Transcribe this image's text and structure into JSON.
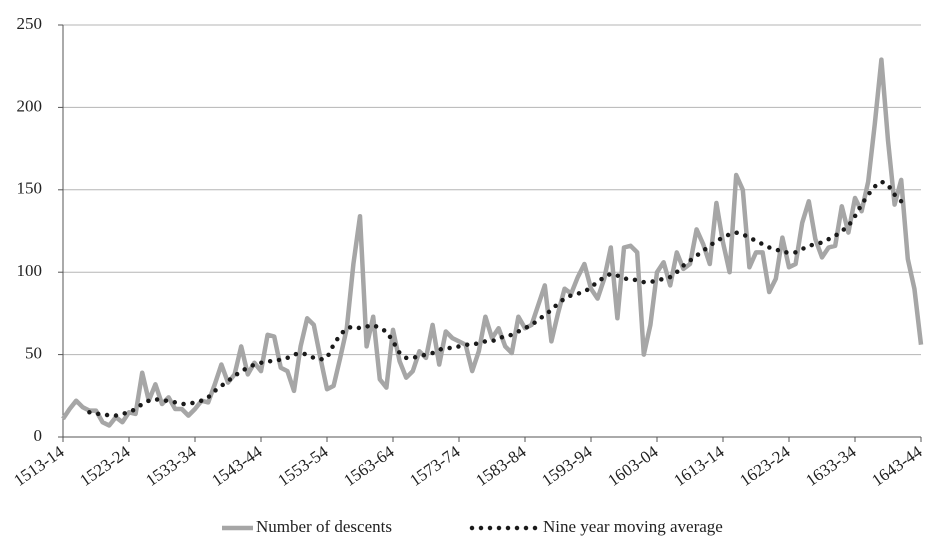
{
  "chart_data": {
    "type": "line",
    "categories": [
      "1513-14",
      null,
      null,
      null,
      null,
      null,
      null,
      null,
      null,
      null,
      "1523-24",
      null,
      null,
      null,
      null,
      null,
      null,
      null,
      null,
      null,
      "1533-34",
      null,
      null,
      null,
      null,
      null,
      null,
      null,
      null,
      null,
      "1543-44",
      null,
      null,
      null,
      null,
      null,
      null,
      null,
      null,
      null,
      "1553-54",
      null,
      null,
      null,
      null,
      null,
      null,
      null,
      null,
      null,
      "1563-64",
      null,
      null,
      null,
      null,
      null,
      null,
      null,
      null,
      null,
      "1573-74",
      null,
      null,
      null,
      null,
      null,
      null,
      null,
      null,
      null,
      "1583-84",
      null,
      null,
      null,
      null,
      null,
      null,
      null,
      null,
      null,
      "1593-94",
      null,
      null,
      null,
      null,
      null,
      null,
      null,
      null,
      null,
      "1603-04",
      null,
      null,
      null,
      null,
      null,
      null,
      null,
      null,
      null,
      "1613-14",
      null,
      null,
      null,
      null,
      null,
      null,
      null,
      null,
      null,
      "1623-24",
      null,
      null,
      null,
      null,
      null,
      null,
      null,
      null,
      null,
      "1633-34",
      null,
      null,
      null,
      null,
      null,
      null,
      null,
      null,
      null,
      "1643-44"
    ],
    "series": [
      {
        "name": "Number of descents",
        "color": "#a6a6a6",
        "style": "solid",
        "values": [
          11,
          17,
          22,
          18,
          16,
          16,
          9,
          7,
          12,
          9,
          15,
          14,
          39,
          22,
          32,
          20,
          24,
          17,
          17,
          13,
          17,
          22,
          21,
          32,
          44,
          33,
          38,
          55,
          38,
          45,
          40,
          62,
          61,
          42,
          40,
          28,
          55,
          72,
          68,
          48,
          29,
          31,
          48,
          66,
          105,
          134,
          55,
          73,
          35,
          30,
          65,
          46,
          36,
          40,
          52,
          48,
          68,
          44,
          64,
          60,
          58,
          56,
          40,
          52,
          73,
          60,
          66,
          55,
          51,
          73,
          66,
          68,
          80,
          92,
          58,
          75,
          90,
          87,
          97,
          105,
          90,
          84,
          96,
          115,
          72,
          115,
          116,
          112,
          50,
          68,
          100,
          106,
          92,
          112,
          102,
          105,
          126,
          117,
          105,
          142,
          118,
          100,
          159,
          150,
          103,
          112,
          112,
          88,
          96,
          121,
          103,
          105,
          130,
          143,
          120,
          109,
          115,
          116,
          140,
          124,
          145,
          137,
          155,
          190,
          229,
          180,
          141,
          156,
          108,
          90,
          56
        ]
      },
      {
        "name": "Nine year moving average",
        "color": "#1a1a1a",
        "style": "dotted",
        "values": [
          null,
          null,
          null,
          null,
          15,
          14,
          14,
          13,
          13,
          14,
          15,
          17,
          20,
          22,
          23,
          22,
          22,
          21,
          20,
          20,
          21,
          22,
          24,
          28,
          31,
          34,
          37,
          40,
          42,
          44,
          45,
          46,
          46,
          47,
          48,
          50,
          51,
          50,
          48,
          47,
          48,
          56,
          62,
          66,
          67,
          66,
          67,
          68,
          66,
          64,
          58,
          51,
          48,
          48,
          49,
          50,
          51,
          53,
          54,
          54,
          55,
          56,
          56,
          57,
          58,
          58,
          60,
          61,
          62,
          64,
          66,
          68,
          71,
          74,
          77,
          81,
          84,
          86,
          87,
          88,
          91,
          94,
          97,
          99,
          98,
          96,
          96,
          95,
          94,
          94,
          95,
          96,
          97,
          100,
          104,
          107,
          110,
          113,
          116,
          119,
          121,
          123,
          124,
          123,
          121,
          119,
          117,
          115,
          114,
          112,
          112,
          112,
          114,
          116,
          117,
          118,
          120,
          122,
          125,
          128,
          134,
          141,
          147,
          152,
          155,
          153,
          147,
          143,
          null,
          null,
          null
        ]
      }
    ],
    "ylim": [
      0,
      250
    ],
    "yticks": [
      0,
      50,
      100,
      150,
      200,
      250
    ],
    "grid": true
  }
}
